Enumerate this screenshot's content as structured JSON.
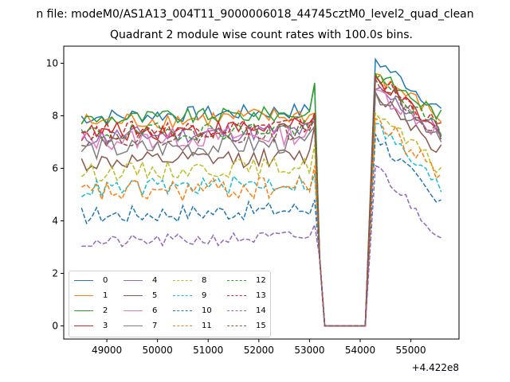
{
  "figure": {
    "suptitle": "n file: modeM0/AS1A13_004T11_9000006018_44745cztM0_level2_quad_clean",
    "title": "Quadrant 2 module wise count rates with 100.0s bins."
  },
  "chart_data": {
    "type": "line",
    "title": "Quadrant 2 module wise count rates with 100.0s bins.",
    "xlabel": "",
    "ylabel": "",
    "x_offset_label": "+4.422e8",
    "xlim": [
      48150,
      55950
    ],
    "ylim": [
      -0.5,
      10.65
    ],
    "xticks": [
      49000,
      50000,
      51000,
      52000,
      53000,
      54000,
      55000
    ],
    "xtick_labels": [
      "49000",
      "50000",
      "51000",
      "52000",
      "53000",
      "54000",
      "55000"
    ],
    "yticks": [
      0,
      2,
      4,
      6,
      8,
      10
    ],
    "ytick_labels": [
      "0",
      "2",
      "4",
      "6",
      "8",
      "10"
    ],
    "x_start": 48500,
    "x_step": 100,
    "gap": {
      "x_end_pre": 53100,
      "zero_from": 53300,
      "zero_to": 54100,
      "x_start_post": 54300,
      "x_end_post": 55600
    },
    "legend": {
      "position": "lower-left",
      "columns": 4
    },
    "series": [
      {
        "name": "0",
        "color": "#1f77b4",
        "dash": "solid",
        "base": 7.95,
        "amp": 0.3,
        "post_start": 10.15,
        "post_end": 8.2,
        "peak": 9.2
      },
      {
        "name": "1",
        "color": "#ff7f0e",
        "dash": "solid",
        "base": 7.75,
        "amp": 0.35,
        "post_start": 9.6,
        "post_end": 7.9,
        "peak": 8.1
      },
      {
        "name": "2",
        "color": "#2ca02c",
        "dash": "solid",
        "base": 7.85,
        "amp": 0.3,
        "post_start": 9.6,
        "post_end": 8.0,
        "peak": 9.25
      },
      {
        "name": "3",
        "color": "#d62728",
        "dash": "solid",
        "base": 7.35,
        "amp": 0.35,
        "post_start": 9.5,
        "post_end": 7.2,
        "peak": 8.0
      },
      {
        "name": "4",
        "color": "#9467bd",
        "dash": "solid",
        "base": 7.2,
        "amp": 0.35,
        "post_start": 9.0,
        "post_end": 7.4,
        "peak": 7.8
      },
      {
        "name": "5",
        "color": "#8c564b",
        "dash": "solid",
        "base": 6.2,
        "amp": 0.35,
        "post_start": 8.9,
        "post_end": 6.7,
        "peak": 7.6
      },
      {
        "name": "6",
        "color": "#e377c2",
        "dash": "solid",
        "base": 7.05,
        "amp": 0.4,
        "post_start": 9.0,
        "post_end": 7.3,
        "peak": 7.9
      },
      {
        "name": "7",
        "color": "#7f7f7f",
        "dash": "solid",
        "base": 6.7,
        "amp": 0.4,
        "post_start": 8.9,
        "post_end": 7.3,
        "peak": 7.6
      },
      {
        "name": "8",
        "color": "#bcbd22",
        "dash": "dashed",
        "base": 5.85,
        "amp": 0.35,
        "post_start": 8.1,
        "post_end": 5.9,
        "peak": 6.9
      },
      {
        "name": "9",
        "color": "#17becf",
        "dash": "dashed",
        "base": 5.2,
        "amp": 0.35,
        "post_start": 7.7,
        "post_end": 5.2,
        "peak": 5.8
      },
      {
        "name": "10",
        "color": "#1f77b4",
        "dash": "dashed",
        "base": 4.2,
        "amp": 0.35,
        "post_start": 7.3,
        "post_end": 4.5,
        "peak": 4.8
      },
      {
        "name": "11",
        "color": "#ff7f0e",
        "dash": "dashed",
        "base": 5.05,
        "amp": 0.45,
        "post_start": 7.9,
        "post_end": 5.7,
        "peak": 6.1
      },
      {
        "name": "12",
        "color": "#2ca02c",
        "dash": "dashed",
        "base": 7.3,
        "amp": 0.35,
        "post_start": 9.4,
        "post_end": 7.4,
        "peak": 8.0
      },
      {
        "name": "13",
        "color": "#d62728",
        "dash": "dashed",
        "base": 7.4,
        "amp": 0.35,
        "post_start": 9.5,
        "post_end": 7.5,
        "peak": 8.1
      },
      {
        "name": "14",
        "color": "#9467bd",
        "dash": "dashed",
        "base": 3.15,
        "amp": 0.25,
        "post_start": 6.1,
        "post_end": 3.35,
        "peak": 3.85
      },
      {
        "name": "15",
        "color": "#8c564b",
        "dash": "dashed",
        "base": 7.15,
        "amp": 0.35,
        "post_start": 9.4,
        "post_end": 7.3,
        "peak": 7.9
      }
    ]
  }
}
